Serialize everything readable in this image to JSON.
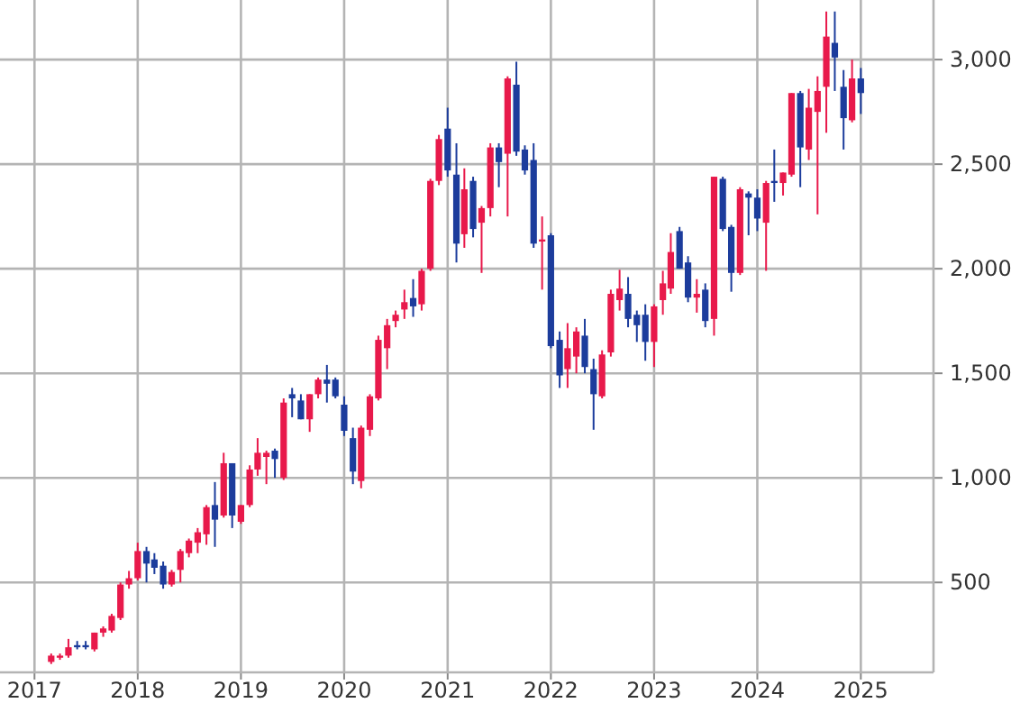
{
  "chart_data": {
    "type": "candlestick",
    "x": [
      "2017-03",
      "2017-04",
      "2017-05",
      "2017-06",
      "2017-07",
      "2017-08",
      "2017-09",
      "2017-10",
      "2017-11",
      "2017-12",
      "2018-01",
      "2018-02",
      "2018-03",
      "2018-04",
      "2018-05",
      "2018-06",
      "2018-07",
      "2018-08",
      "2018-09",
      "2018-10",
      "2018-11",
      "2018-12",
      "2019-01",
      "2019-02",
      "2019-03",
      "2019-04",
      "2019-05",
      "2019-06",
      "2019-07",
      "2019-08",
      "2019-09",
      "2019-10",
      "2019-11",
      "2019-12",
      "2020-01",
      "2020-02",
      "2020-03",
      "2020-04",
      "2020-05",
      "2020-06",
      "2020-07",
      "2020-08",
      "2020-09",
      "2020-10",
      "2020-11",
      "2020-12",
      "2021-01",
      "2021-02",
      "2021-03",
      "2021-04",
      "2021-05",
      "2021-06",
      "2021-07",
      "2021-08",
      "2021-09",
      "2021-10",
      "2021-11",
      "2021-12",
      "2022-01",
      "2022-02",
      "2022-03",
      "2022-04",
      "2022-05",
      "2022-06",
      "2022-07",
      "2022-08",
      "2022-09",
      "2022-10",
      "2022-11",
      "2022-12",
      "2023-01",
      "2023-02",
      "2023-03",
      "2023-04",
      "2023-05",
      "2023-06",
      "2023-07",
      "2023-08",
      "2023-09",
      "2023-10",
      "2023-11",
      "2023-12",
      "2024-01",
      "2024-02",
      "2024-03",
      "2024-04",
      "2024-05",
      "2024-06",
      "2024-07",
      "2024-08",
      "2024-09",
      "2024-10",
      "2024-11",
      "2024-12",
      "2025-01"
    ],
    "ohlc": [
      [
        120,
        160,
        110,
        150
      ],
      [
        140,
        160,
        130,
        150
      ],
      [
        150,
        230,
        140,
        190
      ],
      [
        200,
        220,
        180,
        190
      ],
      [
        200,
        220,
        180,
        190
      ],
      [
        180,
        260,
        170,
        260
      ],
      [
        260,
        290,
        240,
        280
      ],
      [
        270,
        350,
        260,
        340
      ],
      [
        330,
        500,
        320,
        490
      ],
      [
        490,
        555,
        470,
        520
      ],
      [
        520,
        690,
        510,
        650
      ],
      [
        650,
        670,
        500,
        590
      ],
      [
        610,
        640,
        540,
        570
      ],
      [
        580,
        600,
        470,
        490
      ],
      [
        490,
        560,
        480,
        550
      ],
      [
        560,
        660,
        500,
        650
      ],
      [
        640,
        710,
        620,
        700
      ],
      [
        690,
        760,
        640,
        740
      ],
      [
        730,
        870,
        680,
        860
      ],
      [
        870,
        980,
        670,
        800
      ],
      [
        820,
        1120,
        810,
        1070
      ],
      [
        1070,
        1070,
        760,
        820
      ],
      [
        790,
        870,
        780,
        870
      ],
      [
        870,
        1060,
        860,
        1040
      ],
      [
        1040,
        1190,
        1010,
        1120
      ],
      [
        1100,
        1130,
        970,
        1120
      ],
      [
        1130,
        1140,
        1000,
        1090
      ],
      [
        1000,
        1380,
        990,
        1360
      ],
      [
        1400,
        1430,
        1290,
        1380
      ],
      [
        1370,
        1400,
        1280,
        1280
      ],
      [
        1280,
        1400,
        1220,
        1400
      ],
      [
        1400,
        1480,
        1380,
        1470
      ],
      [
        1470,
        1540,
        1360,
        1450
      ],
      [
        1470,
        1480,
        1380,
        1390
      ],
      [
        1350,
        1390,
        1200,
        1225
      ],
      [
        1190,
        1240,
        970,
        1030
      ],
      [
        985,
        1250,
        950,
        1240
      ],
      [
        1230,
        1400,
        1200,
        1390
      ],
      [
        1380,
        1680,
        1370,
        1660
      ],
      [
        1620,
        1760,
        1520,
        1730
      ],
      [
        1750,
        1800,
        1720,
        1780
      ],
      [
        1805,
        1900,
        1760,
        1840
      ],
      [
        1860,
        1950,
        1770,
        1820
      ],
      [
        1830,
        2000,
        1800,
        1990
      ],
      [
        2000,
        2430,
        1990,
        2420
      ],
      [
        2420,
        2640,
        2400,
        2620
      ],
      [
        2670,
        2770,
        2440,
        2470
      ],
      [
        2450,
        2600,
        2030,
        2120
      ],
      [
        2165,
        2480,
        2100,
        2380
      ],
      [
        2420,
        2440,
        2150,
        2190
      ],
      [
        2220,
        2300,
        1980,
        2290
      ],
      [
        2290,
        2600,
        2250,
        2580
      ],
      [
        2580,
        2600,
        2390,
        2510
      ],
      [
        2550,
        2920,
        2250,
        2910
      ],
      [
        2880,
        2990,
        2540,
        2560
      ],
      [
        2570,
        2590,
        2450,
        2470
      ],
      [
        2520,
        2600,
        2100,
        2120
      ],
      [
        2130,
        2250,
        1900,
        2140
      ],
      [
        2160,
        2170,
        1620,
        1630
      ],
      [
        1660,
        1700,
        1430,
        1490
      ],
      [
        1520,
        1740,
        1430,
        1620
      ],
      [
        1580,
        1720,
        1500,
        1700
      ],
      [
        1680,
        1760,
        1500,
        1530
      ],
      [
        1520,
        1570,
        1230,
        1400
      ],
      [
        1390,
        1610,
        1380,
        1590
      ],
      [
        1600,
        1900,
        1580,
        1880
      ],
      [
        1850,
        1995,
        1800,
        1905
      ],
      [
        1880,
        1960,
        1720,
        1760
      ],
      [
        1780,
        1800,
        1650,
        1730
      ],
      [
        1780,
        1830,
        1560,
        1650
      ],
      [
        1650,
        1830,
        1530,
        1820
      ],
      [
        1850,
        1990,
        1780,
        1930
      ],
      [
        1905,
        2170,
        1880,
        2080
      ],
      [
        2180,
        2200,
        2000,
        2000
      ],
      [
        2030,
        2060,
        1840,
        1862
      ],
      [
        1862,
        1950,
        1790,
        1880
      ],
      [
        1900,
        1930,
        1720,
        1750
      ],
      [
        1760,
        2440,
        1680,
        2440
      ],
      [
        2430,
        2440,
        2180,
        2190
      ],
      [
        2200,
        2210,
        1890,
        1980
      ],
      [
        1980,
        2390,
        1970,
        2380
      ],
      [
        2360,
        2370,
        2160,
        2340
      ],
      [
        2340,
        2380,
        2180,
        2240
      ],
      [
        2220,
        2420,
        1990,
        2410
      ],
      [
        2420,
        2570,
        2320,
        2410
      ],
      [
        2410,
        2460,
        2350,
        2460
      ],
      [
        2450,
        2840,
        2440,
        2840
      ],
      [
        2840,
        2850,
        2390,
        2580
      ],
      [
        2570,
        2860,
        2520,
        2770
      ],
      [
        2750,
        2920,
        2260,
        2850
      ],
      [
        2870,
        3230,
        2650,
        3110
      ],
      [
        3080,
        3230,
        2850,
        3010
      ],
      [
        2870,
        2950,
        2570,
        2720
      ],
      [
        2710,
        3000,
        2700,
        2910
      ],
      [
        2910,
        2960,
        2740,
        2840
      ]
    ],
    "colors": [
      "#e8194b",
      "#e8194b",
      "#e8194b",
      "#1c3c9c",
      "#1c3c9c",
      "#e8194b",
      "#e8194b",
      "#e8194b",
      "#e8194b",
      "#e8194b",
      "#e8194b",
      "#1c3c9c",
      "#1c3c9c",
      "#1c3c9c",
      "#e8194b",
      "#e8194b",
      "#e8194b",
      "#e8194b",
      "#e8194b",
      "#1c3c9c",
      "#e8194b",
      "#1c3c9c",
      "#e8194b",
      "#e8194b",
      "#e8194b",
      "#e8194b",
      "#1c3c9c",
      "#e8194b",
      "#1c3c9c",
      "#1c3c9c",
      "#e8194b",
      "#e8194b",
      "#1c3c9c",
      "#1c3c9c",
      "#1c3c9c",
      "#1c3c9c",
      "#e8194b",
      "#e8194b",
      "#e8194b",
      "#e8194b",
      "#e8194b",
      "#e8194b",
      "#1c3c9c",
      "#e8194b",
      "#e8194b",
      "#e8194b",
      "#1c3c9c",
      "#1c3c9c",
      "#e8194b",
      "#1c3c9c",
      "#e8194b",
      "#e8194b",
      "#1c3c9c",
      "#e8194b",
      "#1c3c9c",
      "#1c3c9c",
      "#1c3c9c",
      "#e8194b",
      "#1c3c9c",
      "#1c3c9c",
      "#e8194b",
      "#e8194b",
      "#1c3c9c",
      "#1c3c9c",
      "#e8194b",
      "#e8194b",
      "#e8194b",
      "#1c3c9c",
      "#1c3c9c",
      "#1c3c9c",
      "#e8194b",
      "#e8194b",
      "#e8194b",
      "#1c3c9c",
      "#1c3c9c",
      "#e8194b",
      "#1c3c9c",
      "#e8194b",
      "#1c3c9c",
      "#1c3c9c",
      "#e8194b",
      "#1c3c9c",
      "#1c3c9c",
      "#e8194b",
      "#1c3c9c",
      "#e8194b",
      "#e8194b",
      "#1c3c9c",
      "#e8194b",
      "#e8194b",
      "#e8194b",
      "#1c3c9c",
      "#1c3c9c",
      "#e8194b",
      "#1c3c9c"
    ],
    "xlim": [
      "2016-09",
      "2025-09-15"
    ],
    "xticks": [
      "2017",
      "2018",
      "2019",
      "2020",
      "2021",
      "2022",
      "2023",
      "2024",
      "2025"
    ],
    "ylim": [
      70,
      3285
    ],
    "yticks": [
      500,
      {
        "value": 1000,
        "label": "1,000"
      },
      {
        "value": 1500,
        "label": "1,500"
      },
      {
        "value": 2000,
        "label": "2,000"
      },
      {
        "value": 2500,
        "label": "2,500"
      },
      {
        "value": 3000,
        "label": "3,000"
      }
    ],
    "grid": true
  }
}
